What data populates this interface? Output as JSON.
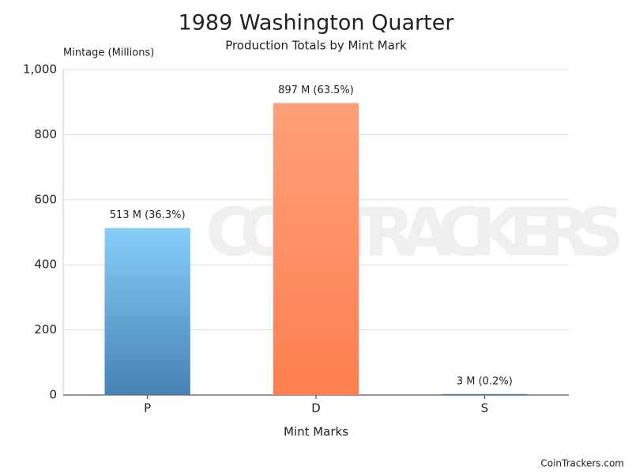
{
  "chart_data": {
    "type": "bar",
    "title": "1989 Washington Quarter",
    "subtitle": "Production Totals by Mint Mark",
    "y_label": "Mintage (Millions)",
    "x_label": "Mint Marks",
    "categories": [
      "P",
      "D",
      "S"
    ],
    "values": [
      513,
      897,
      3
    ],
    "value_labels": [
      "513 M (36.3%)",
      "897 M (63.5%)",
      "3 M (0.2%)"
    ],
    "colors": [
      [
        "#87cefa",
        "#4682b4"
      ],
      [
        "#ffa07a",
        "#ff7f50"
      ],
      [
        "#5f9ea0",
        "#2f6f8f"
      ]
    ],
    "ylim": [
      0,
      1000
    ],
    "yticks": [
      0,
      200,
      400,
      600,
      800,
      {
        "value": 1000,
        "label": "1,000"
      }
    ],
    "grid": true,
    "watermark": "COINTRACKERS",
    "credit": "CoinTrackers.com"
  }
}
